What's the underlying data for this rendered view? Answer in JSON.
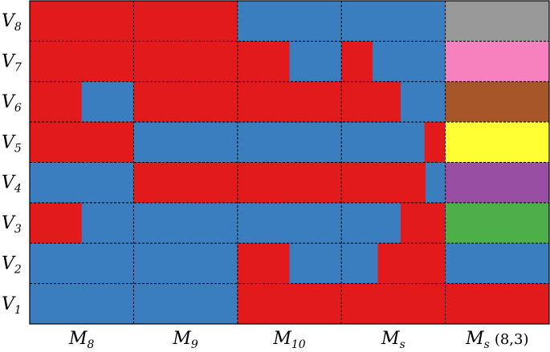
{
  "colors": {
    "red": "#e31a1c",
    "blue": "#3a7ebf",
    "gray": "#999999",
    "pink": "#f781bf",
    "brown": "#a65628",
    "yellow": "#ffff33",
    "purple": "#984ea3",
    "green": "#4daf4a",
    "grid": "#000000"
  },
  "chart_data": {
    "type": "heatmap",
    "title": "",
    "rows": [
      {
        "letter": "V",
        "sub": "8"
      },
      {
        "letter": "V",
        "sub": "7"
      },
      {
        "letter": "V",
        "sub": "6"
      },
      {
        "letter": "V",
        "sub": "5"
      },
      {
        "letter": "V",
        "sub": "4"
      },
      {
        "letter": "V",
        "sub": "3"
      },
      {
        "letter": "V",
        "sub": "2"
      },
      {
        "letter": "V",
        "sub": "1"
      }
    ],
    "columns": [
      {
        "letter": "M",
        "sub": "8",
        "extra": ""
      },
      {
        "letter": "M",
        "sub": "9",
        "extra": ""
      },
      {
        "letter": "M",
        "sub": "10",
        "extra": ""
      },
      {
        "letter": "M",
        "sub": "s",
        "extra": ""
      },
      {
        "letter": "M",
        "sub": "s",
        "extra": "(8,3)"
      }
    ],
    "cells": [
      [
        [
          [
            "red",
            1
          ]
        ],
        [
          [
            "red",
            1
          ]
        ],
        [
          [
            "blue",
            1
          ]
        ],
        [
          [
            "blue",
            1
          ]
        ],
        [
          [
            "gray",
            1
          ]
        ]
      ],
      [
        [
          [
            "red",
            1
          ]
        ],
        [
          [
            "red",
            1
          ]
        ],
        [
          [
            "red",
            0.5
          ],
          [
            "blue",
            0.5
          ]
        ],
        [
          [
            "red",
            0.3
          ],
          [
            "blue",
            0.7
          ]
        ],
        [
          [
            "pink",
            1
          ]
        ]
      ],
      [
        [
          [
            "red",
            0.5
          ],
          [
            "blue",
            0.5
          ]
        ],
        [
          [
            "red",
            1
          ]
        ],
        [
          [
            "red",
            1
          ]
        ],
        [
          [
            "red",
            0.57
          ],
          [
            "blue",
            0.43
          ]
        ],
        [
          [
            "brown",
            1
          ]
        ]
      ],
      [
        [
          [
            "red",
            1
          ]
        ],
        [
          [
            "blue",
            1
          ]
        ],
        [
          [
            "blue",
            1
          ]
        ],
        [
          [
            "blue",
            0.8
          ],
          [
            "red",
            0.2
          ]
        ],
        [
          [
            "yellow",
            1
          ]
        ]
      ],
      [
        [
          [
            "blue",
            1
          ]
        ],
        [
          [
            "red",
            1
          ]
        ],
        [
          [
            "red",
            1
          ]
        ],
        [
          [
            "red",
            0.81
          ],
          [
            "blue",
            0.19
          ]
        ],
        [
          [
            "purple",
            1
          ]
        ]
      ],
      [
        [
          [
            "red",
            0.5
          ],
          [
            "blue",
            0.5
          ]
        ],
        [
          [
            "blue",
            1
          ]
        ],
        [
          [
            "blue",
            1
          ]
        ],
        [
          [
            "blue",
            0.57
          ],
          [
            "red",
            0.43
          ]
        ],
        [
          [
            "green",
            1
          ]
        ]
      ],
      [
        [
          [
            "blue",
            1
          ]
        ],
        [
          [
            "blue",
            1
          ]
        ],
        [
          [
            "red",
            0.5
          ],
          [
            "blue",
            0.5
          ]
        ],
        [
          [
            "blue",
            0.35
          ],
          [
            "red",
            0.65
          ]
        ],
        [
          [
            "blue",
            1
          ]
        ]
      ],
      [
        [
          [
            "blue",
            1
          ]
        ],
        [
          [
            "blue",
            1
          ]
        ],
        [
          [
            "red",
            1
          ]
        ],
        [
          [
            "red",
            1
          ]
        ],
        [
          [
            "red",
            1
          ]
        ]
      ]
    ]
  }
}
